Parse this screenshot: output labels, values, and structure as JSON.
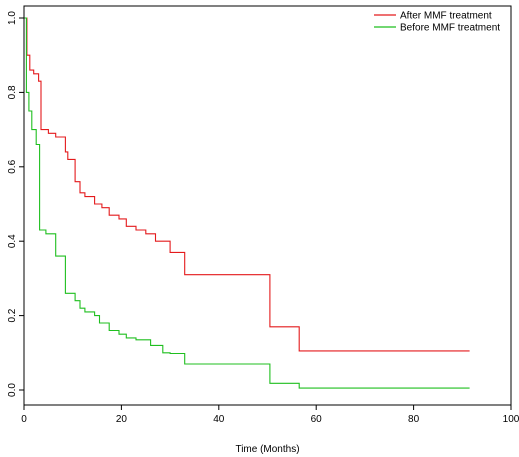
{
  "chart_data": {
    "type": "line",
    "title": "",
    "xlabel": "Time (Months)",
    "ylabel": "",
    "xlim": [
      0,
      100
    ],
    "ylim": [
      0,
      1
    ],
    "xticks": [
      "0",
      "20",
      "40",
      "60",
      "80",
      "100"
    ],
    "yticks": [
      "0.0",
      "0.2",
      "0.4",
      "0.6",
      "0.8",
      "1.0"
    ],
    "grid": false,
    "legend_position": "top-right",
    "step": true,
    "series": [
      {
        "name": "After MMF treatment",
        "color": "#e41a1c",
        "x": [
          0,
          0.6,
          1.2,
          2,
          3,
          3.5,
          5,
          6.5,
          8.5,
          9,
          10.5,
          11.5,
          12.5,
          14.5,
          16,
          17.5,
          19.5,
          21,
          23,
          25,
          27,
          30,
          33,
          50.5,
          56.5,
          91.5
        ],
        "y": [
          1.0,
          0.9,
          0.86,
          0.85,
          0.83,
          0.7,
          0.69,
          0.68,
          0.64,
          0.62,
          0.56,
          0.53,
          0.52,
          0.5,
          0.49,
          0.47,
          0.46,
          0.44,
          0.43,
          0.42,
          0.4,
          0.37,
          0.31,
          0.17,
          0.105,
          0.105
        ]
      },
      {
        "name": "Before MMF treatment",
        "color": "#1fbf1f",
        "x": [
          0,
          0.5,
          1.0,
          1.6,
          2.5,
          3.2,
          4.5,
          6.5,
          8.5,
          10.5,
          11.5,
          12.5,
          14.5,
          15.5,
          17.5,
          19.5,
          21,
          23,
          26,
          28.5,
          30,
          33,
          50.5,
          56.5,
          91.5
        ],
        "y": [
          1.0,
          0.8,
          0.75,
          0.7,
          0.66,
          0.43,
          0.42,
          0.36,
          0.26,
          0.24,
          0.22,
          0.21,
          0.2,
          0.18,
          0.16,
          0.15,
          0.14,
          0.135,
          0.12,
          0.1,
          0.098,
          0.07,
          0.018,
          0.005,
          0.005
        ]
      }
    ]
  }
}
